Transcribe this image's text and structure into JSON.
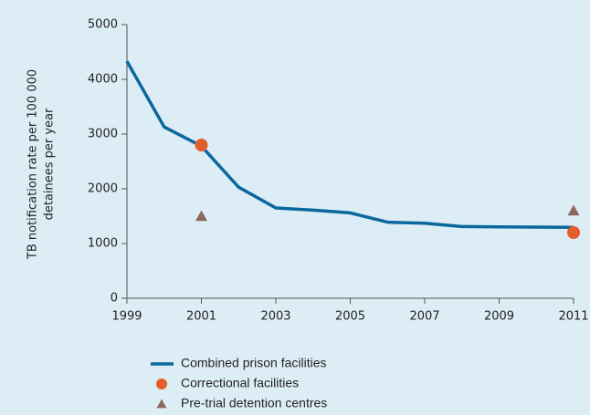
{
  "chart_data": {
    "type": "line",
    "ylabel": [
      "TB notification rate per 100 000",
      "detainees per year"
    ],
    "x": [
      1999,
      2000,
      2001,
      2002,
      2003,
      2004,
      2005,
      2006,
      2007,
      2008,
      2009,
      2010,
      2011
    ],
    "xlim": [
      1999,
      2011
    ],
    "xticks": [
      1999,
      2001,
      2003,
      2005,
      2007,
      2009,
      2011
    ],
    "ylim": [
      0,
      5000
    ],
    "yticks": [
      0,
      1000,
      2000,
      3000,
      4000,
      5000
    ],
    "grid": false,
    "series": [
      {
        "name": "Combined prison facilities",
        "color": "#0b679e",
        "marker": "line",
        "values": [
          4330,
          3130,
          2780,
          2030,
          1650,
          1610,
          1560,
          1390,
          1370,
          1310,
          1305,
          1300,
          1295
        ]
      },
      {
        "name": "Correctional facilities",
        "color": "#e35d2c",
        "marker": "circle",
        "x": [
          2001,
          2011
        ],
        "values": [
          2800,
          1200
        ]
      },
      {
        "name": "Pre-trial detention centres",
        "color": "#8c6a5d",
        "marker": "triangle",
        "x": [
          2001,
          2011
        ],
        "values": [
          1500,
          1600
        ]
      }
    ]
  }
}
